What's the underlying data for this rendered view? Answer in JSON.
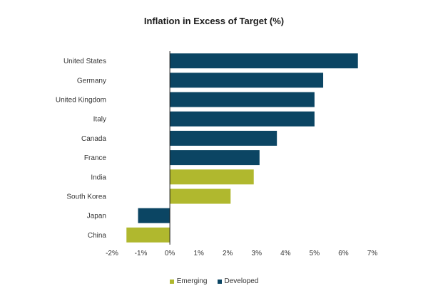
{
  "chart_data": {
    "type": "bar",
    "orientation": "horizontal",
    "title": "Inflation in Excess of Target (%)",
    "xlabel": "",
    "ylabel": "",
    "xlim": [
      -2,
      7
    ],
    "x_ticks": [
      -2,
      -1,
      0,
      1,
      2,
      3,
      4,
      5,
      6,
      7
    ],
    "x_tick_labels": [
      "-2%",
      "-1%",
      "0%",
      "1%",
      "2%",
      "3%",
      "4%",
      "5%",
      "6%",
      "7%"
    ],
    "grid": false,
    "legend_position": "bottom-center",
    "categories": [
      "United States",
      "Germany",
      "United Kingdom",
      "Italy",
      "Canada",
      "France",
      "India",
      "South Korea",
      "Japan",
      "China"
    ],
    "values": [
      6.5,
      5.3,
      5.0,
      5.0,
      3.7,
      3.1,
      2.9,
      2.1,
      -1.1,
      -1.5
    ],
    "groups": [
      "Developed",
      "Developed",
      "Developed",
      "Developed",
      "Developed",
      "Developed",
      "Emerging",
      "Emerging",
      "Developed",
      "Emerging"
    ],
    "series": [
      {
        "name": "Emerging",
        "color": "#b0b82e"
      },
      {
        "name": "Developed",
        "color": "#0b4563"
      }
    ]
  }
}
